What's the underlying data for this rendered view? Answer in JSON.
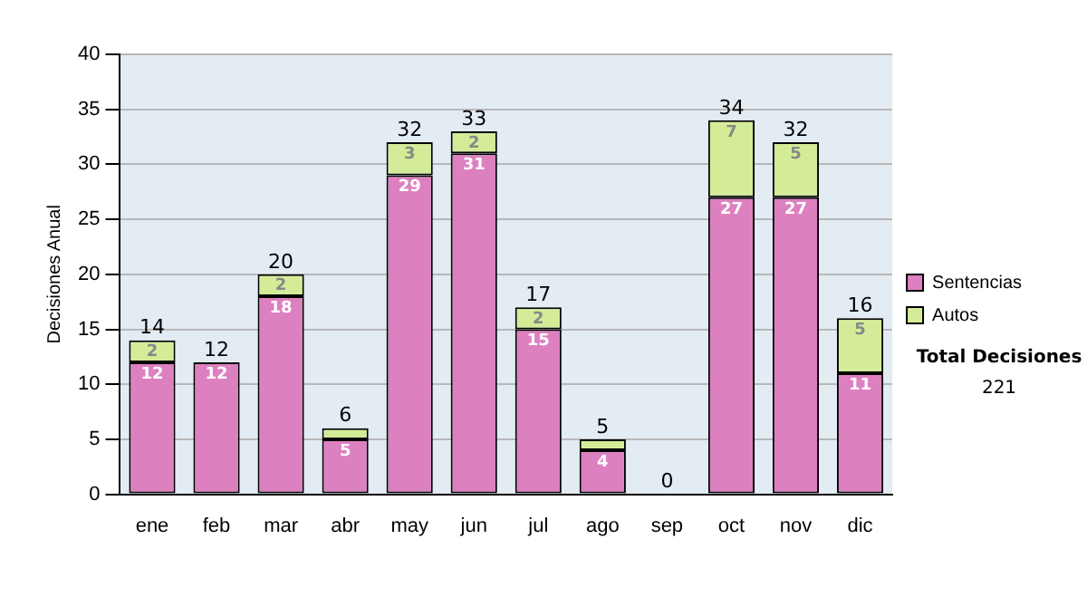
{
  "chart_data": {
    "type": "bar",
    "stacked": true,
    "categories": [
      "ene",
      "feb",
      "mar",
      "abr",
      "may",
      "jun",
      "jul",
      "ago",
      "sep",
      "oct",
      "nov",
      "dic"
    ],
    "series": [
      {
        "name": "Sentencias",
        "color": "#dd80c0",
        "values": [
          12,
          12,
          18,
          5,
          29,
          31,
          15,
          4,
          0,
          27,
          27,
          11
        ],
        "value_labels": [
          "12",
          "12",
          "18",
          "5",
          "29",
          "31",
          "15",
          "4",
          null,
          "27",
          "27",
          "11"
        ]
      },
      {
        "name": "Autos",
        "color": "#d4ec98",
        "values": [
          2,
          0,
          2,
          1,
          3,
          2,
          2,
          1,
          0,
          7,
          5,
          5
        ],
        "value_labels": [
          "2",
          null,
          "2",
          null,
          "3",
          "2",
          "2",
          null,
          null,
          "7",
          "5",
          "5"
        ]
      }
    ],
    "totals": [
      "14",
      "12",
      "20",
      "6",
      "32",
      "33",
      "17",
      "5",
      "0",
      "34",
      "32",
      "16"
    ],
    "ylabel": "Decisiones Anual",
    "ylim": [
      0,
      40
    ],
    "yticks": [
      0,
      5,
      10,
      15,
      20,
      25,
      30,
      35,
      40
    ],
    "grid": "y",
    "legend": "right",
    "annotations": [
      "Total Decisiones",
      "221"
    ]
  }
}
